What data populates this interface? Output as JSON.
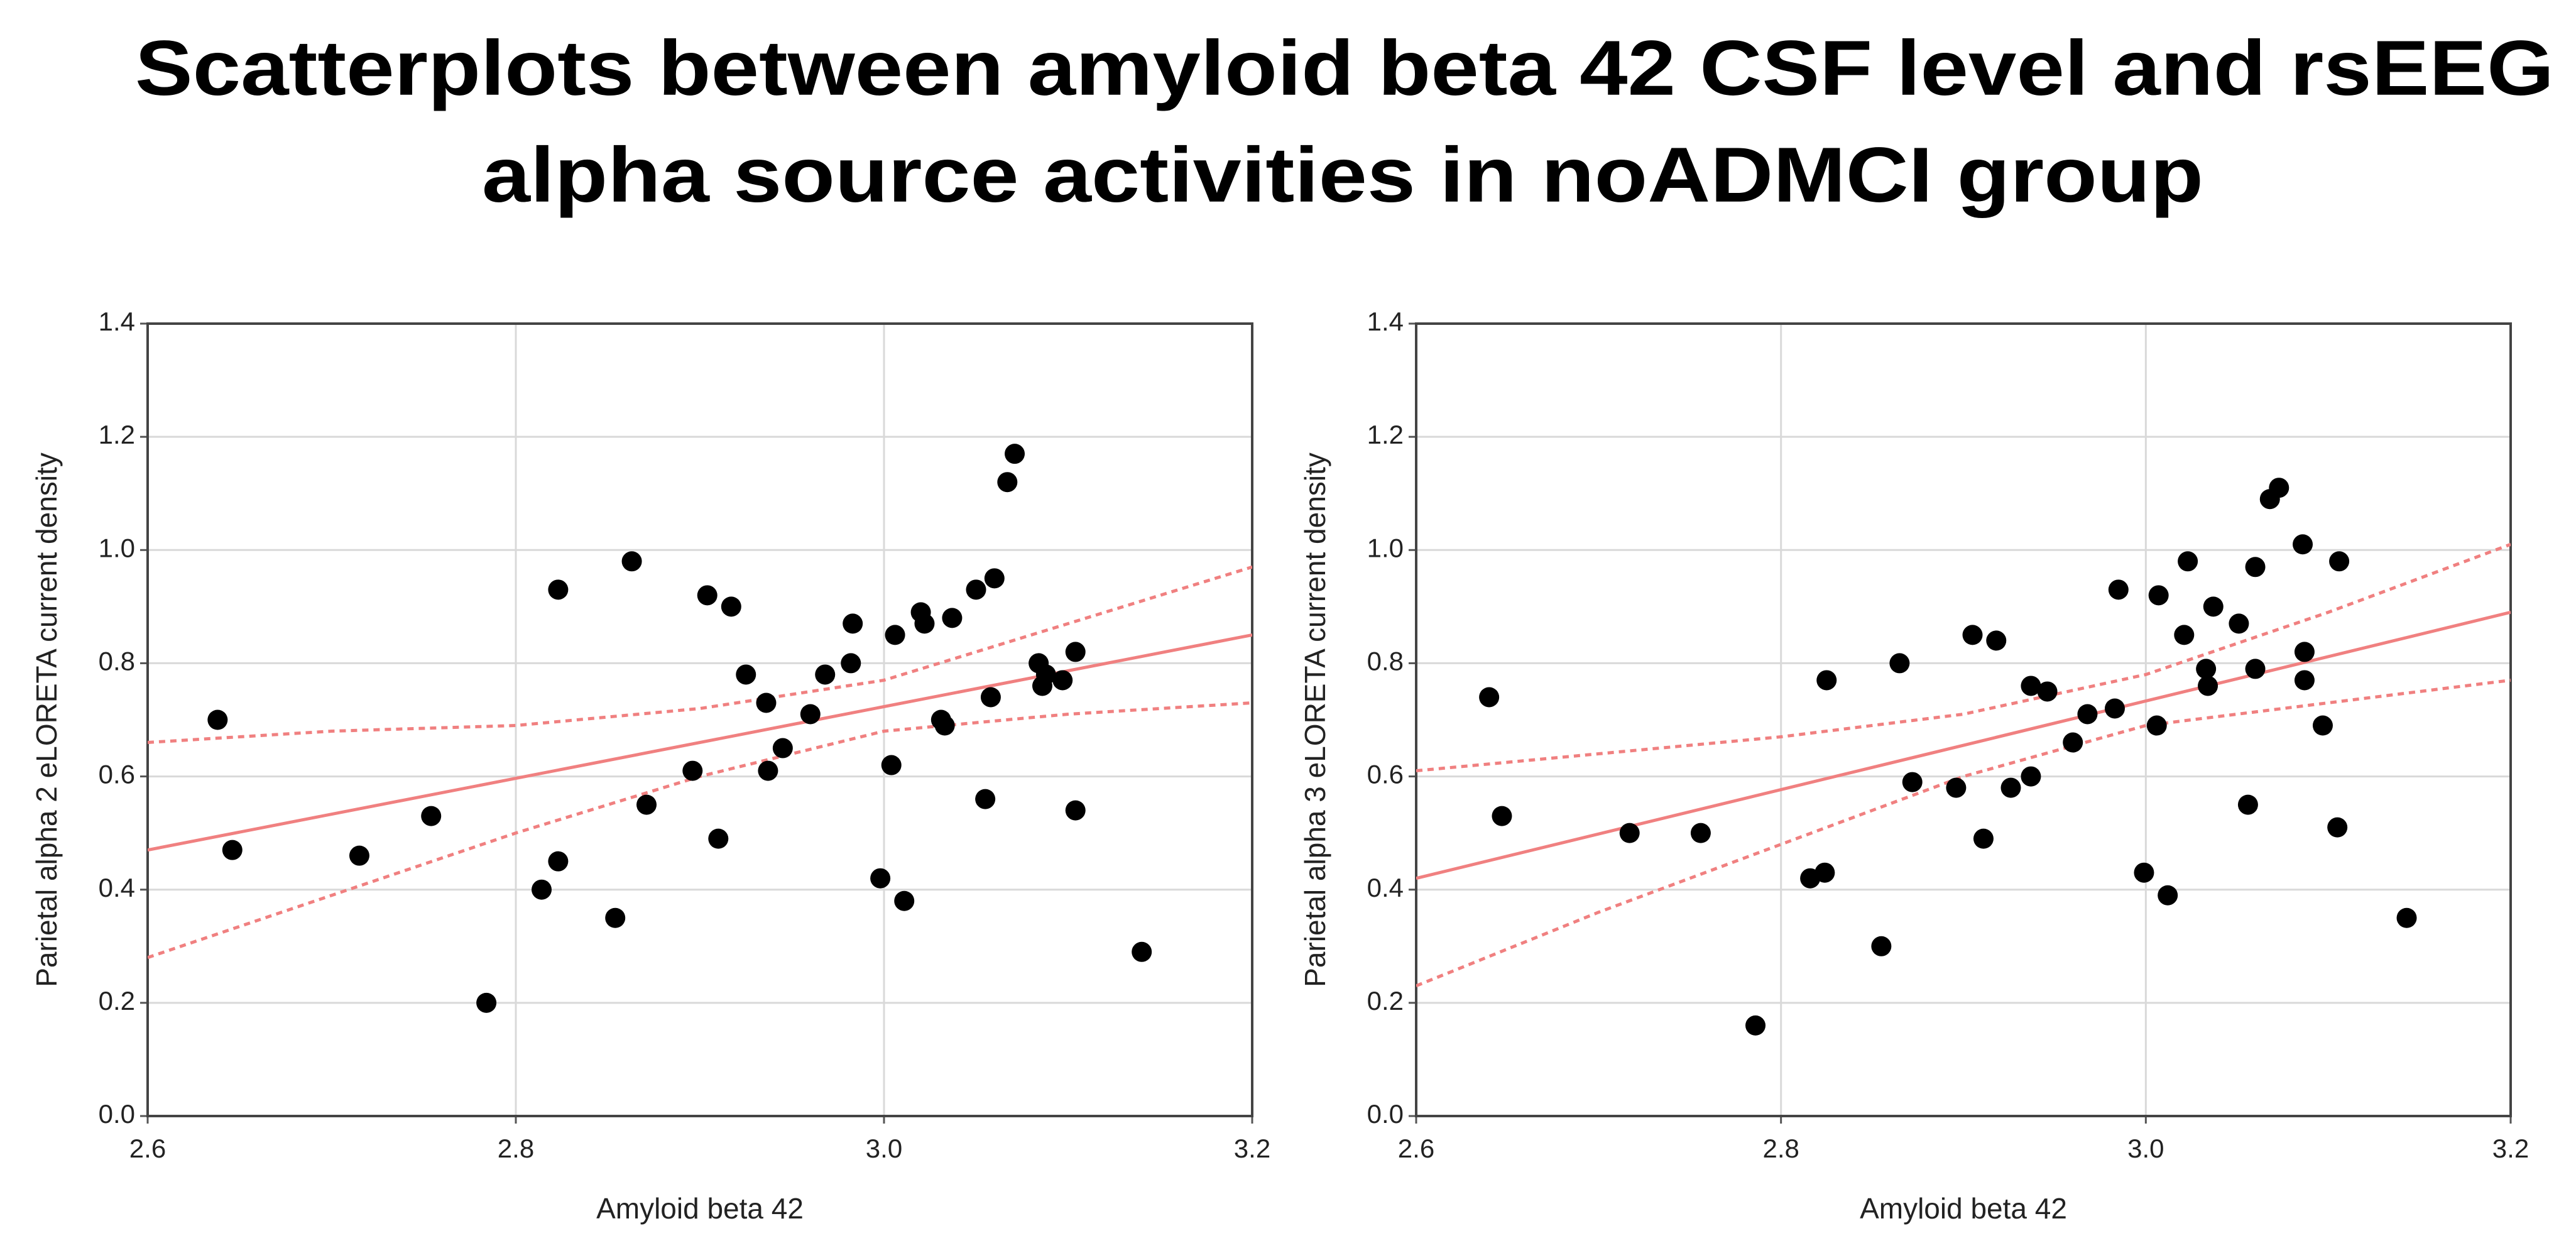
{
  "title": [
    "Scatterplots between amyloid beta 42 CSF level and rsEEG",
    "alpha source activities in noADMCI group"
  ],
  "chart_data": [
    {
      "type": "scatter",
      "xlabel": "Amyloid beta 42",
      "ylabel": "Parietal alpha 2 eLORETA current density",
      "color": "#000000",
      "fit_color": "#f08080",
      "grid": true,
      "xlim": [
        2.6,
        3.2
      ],
      "ylim": [
        0,
        1.4
      ],
      "xticks": [
        2.6,
        2.8,
        {
          "value": 3.0,
          "label": "3.0"
        },
        3.2
      ],
      "yticks": [
        {
          "value": 0,
          "label": "0.0"
        },
        0.2,
        0.4,
        0.6,
        0.8,
        {
          "value": 1.0,
          "label": "1.0"
        },
        1.2,
        1.4
      ],
      "x": [
        2.638,
        2.646,
        2.715,
        2.754,
        2.784,
        2.814,
        2.823,
        2.823,
        2.854,
        2.863,
        2.871,
        2.896,
        2.904,
        2.91,
        2.917,
        2.925,
        2.936,
        2.937,
        2.945,
        2.96,
        2.968,
        2.982,
        2.983,
        2.998,
        3.004,
        3.006,
        3.011,
        3.02,
        3.022,
        3.031,
        3.033,
        3.037,
        3.05,
        3.055,
        3.058,
        3.06,
        3.067,
        3.071,
        3.084,
        3.086,
        3.088,
        3.097,
        3.104,
        3.104,
        3.14
      ],
      "values": [
        0.7,
        0.47,
        0.46,
        0.53,
        0.2,
        0.4,
        0.45,
        0.93,
        0.35,
        0.98,
        0.55,
        0.61,
        0.92,
        0.49,
        0.9,
        0.78,
        0.73,
        0.61,
        0.65,
        0.71,
        0.78,
        0.8,
        0.87,
        0.42,
        0.62,
        0.85,
        0.38,
        0.89,
        0.87,
        0.7,
        0.69,
        0.88,
        0.93,
        0.56,
        0.74,
        0.95,
        1.12,
        1.17,
        0.8,
        0.76,
        0.78,
        0.77,
        0.82,
        0.54,
        0.29
      ],
      "fit_line": {
        "x": [
          2.6,
          3.2
        ],
        "y": [
          0.47,
          0.85
        ]
      },
      "ci_upper": {
        "x": [
          2.6,
          2.7,
          2.8,
          2.9,
          3.0,
          3.1,
          3.2
        ],
        "y": [
          0.66,
          0.68,
          0.69,
          0.72,
          0.77,
          0.87,
          0.97
        ]
      },
      "ci_lower": {
        "x": [
          2.6,
          2.7,
          2.8,
          2.9,
          3.0,
          3.1,
          3.2
        ],
        "y": [
          0.28,
          0.39,
          0.5,
          0.6,
          0.68,
          0.71,
          0.73
        ]
      }
    },
    {
      "type": "scatter",
      "xlabel": "Amyloid beta 42",
      "ylabel": "Parietal alpha 3 eLORETA current density",
      "color": "#000000",
      "fit_color": "#f08080",
      "grid": true,
      "xlim": [
        2.6,
        3.2
      ],
      "ylim": [
        0,
        1.4
      ],
      "xticks": [
        2.6,
        2.8,
        {
          "value": 3.0,
          "label": "3.0"
        },
        3.2
      ],
      "yticks": [
        {
          "value": 0,
          "label": "0.0"
        },
        0.2,
        0.4,
        0.6,
        0.8,
        {
          "value": 1.0,
          "label": "1.0"
        },
        1.2,
        1.4
      ],
      "x": [
        2.64,
        2.647,
        2.717,
        2.756,
        2.786,
        2.816,
        2.824,
        2.825,
        2.855,
        2.865,
        2.872,
        2.896,
        2.905,
        2.911,
        2.918,
        2.926,
        2.937,
        2.937,
        2.946,
        2.96,
        2.968,
        2.983,
        2.985,
        2.999,
        3.006,
        3.007,
        3.012,
        3.021,
        3.023,
        3.033,
        3.034,
        3.037,
        3.051,
        3.056,
        3.06,
        3.06,
        3.068,
        3.073,
        3.086,
        3.087,
        3.087,
        3.097,
        3.105,
        3.106,
        3.143
      ],
      "values": [
        0.74,
        0.53,
        0.5,
        0.5,
        0.16,
        0.42,
        0.43,
        0.77,
        0.3,
        0.8,
        0.59,
        0.58,
        0.85,
        0.49,
        0.84,
        0.58,
        0.6,
        0.76,
        0.75,
        0.66,
        0.71,
        0.72,
        0.93,
        0.43,
        0.69,
        0.92,
        0.39,
        0.85,
        0.98,
        0.79,
        0.76,
        0.9,
        0.87,
        0.55,
        0.79,
        0.97,
        1.09,
        1.11,
        1.01,
        0.77,
        0.82,
        0.69,
        0.51,
        0.98,
        0.35
      ],
      "fit_line": {
        "x": [
          2.6,
          3.2
        ],
        "y": [
          0.42,
          0.89
        ]
      },
      "ci_upper": {
        "x": [
          2.6,
          2.7,
          2.8,
          2.9,
          3.0,
          3.1,
          3.2
        ],
        "y": [
          0.61,
          0.64,
          0.67,
          0.71,
          0.78,
          0.89,
          1.01
        ]
      },
      "ci_lower": {
        "x": [
          2.6,
          2.7,
          2.8,
          2.9,
          3.0,
          3.1,
          3.2
        ],
        "y": [
          0.23,
          0.36,
          0.48,
          0.6,
          0.69,
          0.73,
          0.77
        ]
      }
    }
  ]
}
